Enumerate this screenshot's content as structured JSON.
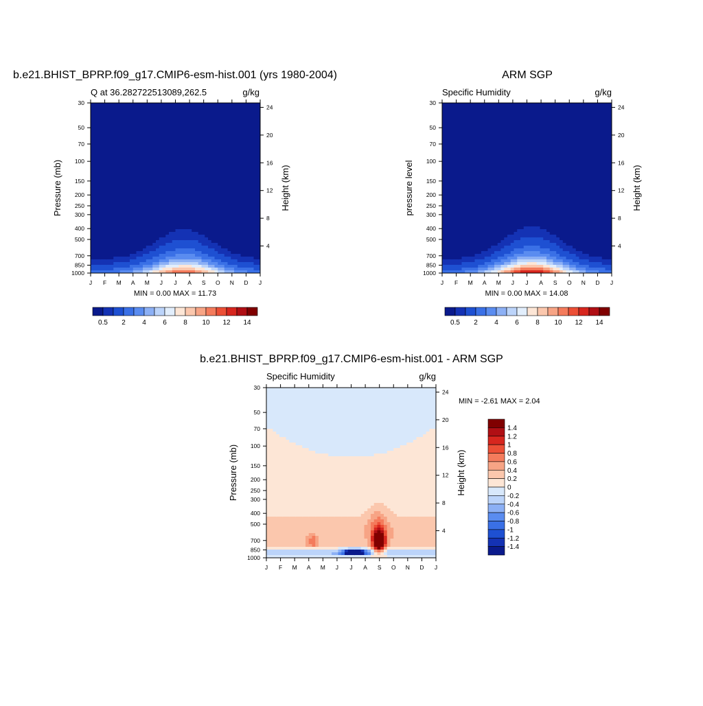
{
  "months": [
    "J",
    "F",
    "M",
    "A",
    "M",
    "J",
    "J",
    "A",
    "S",
    "O",
    "N",
    "D",
    "J"
  ],
  "pressure_ticks": [
    30,
    50,
    70,
    100,
    150,
    200,
    250,
    300,
    400,
    500,
    700,
    850,
    1000
  ],
  "height_ticks": [
    4,
    8,
    12,
    16,
    20,
    24
  ],
  "colors": {
    "seq": [
      "#0a1a8c",
      "#1432b4",
      "#1e50d2",
      "#3a70e6",
      "#5a8cf0",
      "#8cb0f5",
      "#bcd4fa",
      "#e2eefc",
      "#fde6d6",
      "#fbc7ad",
      "#f7a485",
      "#f47b5c",
      "#ec4f36",
      "#d7261e",
      "#b00f14",
      "#800000"
    ],
    "div": [
      "#0a1a8c",
      "#1432b4",
      "#1e50d2",
      "#3a70e6",
      "#5a8cf0",
      "#8cb0f5",
      "#bcd4fa",
      "#d8e8fb",
      "#fde6d6",
      "#fbc7ad",
      "#f7a485",
      "#f47b5c",
      "#ec4f36",
      "#d7261e",
      "#b00f14",
      "#800000"
    ]
  },
  "panels": [
    {
      "id": "model",
      "title": "b.e21.BHIST_BPRP.f09_g17.CMIP6-esm-hist.001 (yrs 1980-2004)",
      "left_label": "Q at 36.282722513089,262.5",
      "right_label": "g/kg",
      "ylabel": "Pressure (mb)",
      "rlabel": "Height (km)",
      "stats": "MIN =   0.00 MAX =  11.73"
    },
    {
      "id": "obs",
      "title": "ARM SGP",
      "left_label": "Specific Humidity",
      "right_label": "g/kg",
      "ylabel": "pressure level",
      "rlabel": "Height (km)",
      "stats": "MIN =   0.00 MAX =  14.08"
    },
    {
      "id": "diff",
      "title": "b.e21.BHIST_BPRP.f09_g17.CMIP6-esm-hist.001 - ARM SGP",
      "left_label": "Specific Humidity",
      "right_label": "g/kg",
      "ylabel": "Pressure (mb)",
      "rlabel": "Height (km)",
      "stats": "MIN =  -2.61 MAX =   2.04"
    }
  ],
  "colorbar_seq_labels": [
    "0.5",
    "2",
    "4",
    "6",
    "8",
    "10",
    "12",
    "14"
  ],
  "colorbar_div_labels": [
    "1.4",
    "1.2",
    "1",
    "0.8",
    "0.6",
    "0.4",
    "0.2",
    "0",
    "-0.2",
    "-0.4",
    "-0.6",
    "-0.8",
    "-1",
    "-1.2",
    "-1.4"
  ],
  "chart_data": [
    {
      "type": "heatmap",
      "title": "b.e21.BHIST_BPRP.f09_g17.CMIP6-esm-hist.001 (yrs 1980-2004)",
      "subtitle": "Q at 36.282722513089,262.5",
      "units": "g/kg",
      "ylabel": "Pressure (mb)",
      "y2label": "Height (km)",
      "x": [
        "J",
        "F",
        "M",
        "A",
        "M",
        "J",
        "J",
        "A",
        "S",
        "O",
        "N",
        "D",
        "J"
      ],
      "ylim": [
        1000,
        30
      ],
      "yscale": "log",
      "min": 0.0,
      "max": 11.73,
      "levels": [
        0.5,
        1,
        2,
        3,
        4,
        5,
        6,
        7,
        8,
        9,
        10,
        11,
        12,
        13,
        14
      ],
      "colorbar": "horizontal-bottom"
    },
    {
      "type": "heatmap",
      "title": "ARM SGP",
      "subtitle": "Specific Humidity",
      "units": "g/kg",
      "ylabel": "pressure level",
      "y2label": "Height (km)",
      "x": [
        "J",
        "F",
        "M",
        "A",
        "M",
        "J",
        "J",
        "A",
        "S",
        "O",
        "N",
        "D",
        "J"
      ],
      "ylim": [
        1000,
        30
      ],
      "yscale": "log",
      "min": 0.0,
      "max": 14.08,
      "levels": [
        0.5,
        1,
        2,
        3,
        4,
        5,
        6,
        7,
        8,
        9,
        10,
        11,
        12,
        13,
        14
      ],
      "colorbar": "horizontal-bottom"
    },
    {
      "type": "heatmap",
      "title": "b.e21.BHIST_BPRP.f09_g17.CMIP6-esm-hist.001 - ARM SGP",
      "subtitle": "Specific Humidity",
      "units": "g/kg",
      "ylabel": "Pressure (mb)",
      "y2label": "Height (km)",
      "x": [
        "J",
        "F",
        "M",
        "A",
        "M",
        "J",
        "J",
        "A",
        "S",
        "O",
        "N",
        "D",
        "J"
      ],
      "ylim": [
        1000,
        30
      ],
      "yscale": "log",
      "min": -2.61,
      "max": 2.04,
      "levels": [
        -1.4,
        -1.2,
        -1,
        -0.8,
        -0.6,
        -0.4,
        -0.2,
        0,
        0.2,
        0.4,
        0.6,
        0.8,
        1,
        1.2,
        1.4
      ],
      "colorbar": "vertical-right"
    }
  ]
}
